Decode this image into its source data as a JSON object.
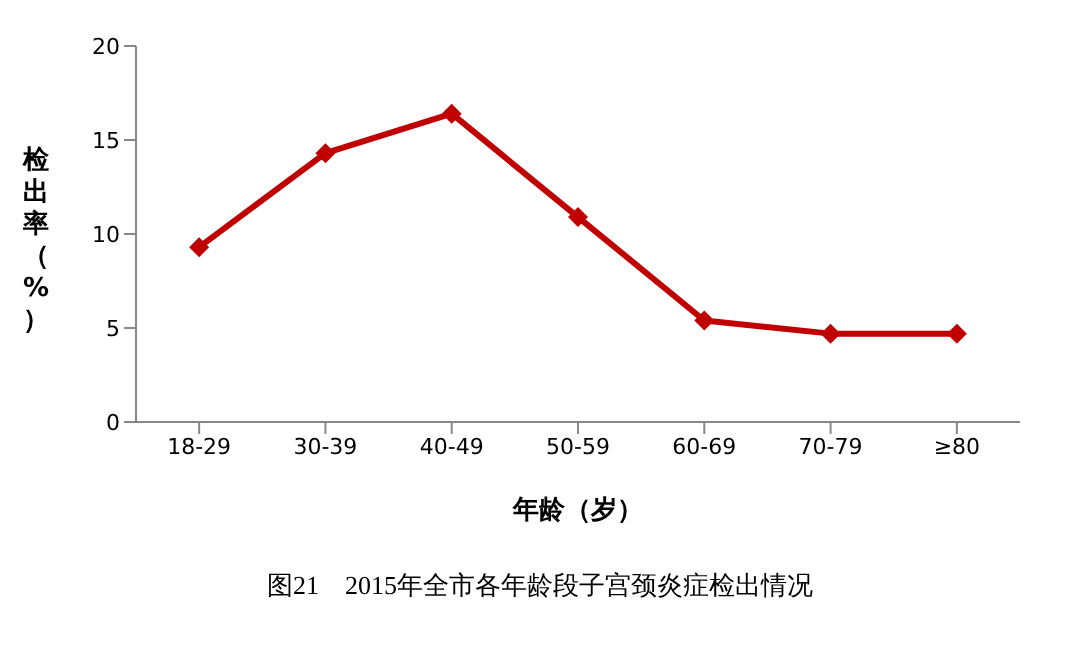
{
  "chart_data": {
    "type": "line",
    "title": "图21　2015年全市各年龄段子宫颈炎症检出情况",
    "xlabel": "年龄（岁）",
    "ylabel": "检出率（%）",
    "categories": [
      "18-29",
      "30-39",
      "40-49",
      "50-59",
      "60-69",
      "70-79",
      "≥80"
    ],
    "series": [
      {
        "color": "#c00000",
        "values": [
          9.3,
          14.3,
          16.4,
          10.9,
          5.4,
          4.7,
          4.7
        ]
      }
    ],
    "ylim": [
      0,
      20
    ],
    "yticks": [
      0,
      5,
      10,
      15,
      20
    ],
    "grid": false,
    "legend": false,
    "marker": "diamond",
    "line_style": "solid"
  }
}
